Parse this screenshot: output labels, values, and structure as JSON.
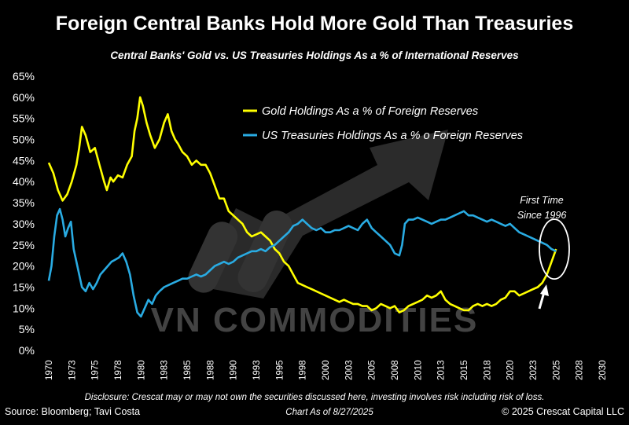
{
  "chart_data": {
    "type": "line",
    "title": "Foreign Central Banks Hold More Gold Than Treasuries",
    "subtitle": "Central Banks' Gold vs. US Treasuries Holdings As a % of International Reserves",
    "xlim": [
      1970,
      2030
    ],
    "ylim": [
      0,
      65
    ],
    "x_ticks": [
      "1970",
      "1973",
      "1975",
      "1978",
      "1980",
      "1983",
      "1985",
      "1988",
      "1990",
      "1993",
      "1995",
      "1998",
      "2000",
      "2003",
      "2005",
      "2008",
      "2010",
      "2013",
      "2015",
      "2018",
      "2020",
      "2023",
      "2025",
      "2028",
      "2030"
    ],
    "y_ticks": [
      "0%",
      "5%",
      "10%",
      "15%",
      "20%",
      "25%",
      "30%",
      "35%",
      "40%",
      "45%",
      "50%",
      "55%",
      "60%",
      "65%"
    ],
    "legend_position": "top-right",
    "series": [
      {
        "name": "Gold Holdings As a % of Foreign Reserves",
        "color": "#ffff00",
        "points": [
          [
            1970.0,
            44.5
          ],
          [
            1970.5,
            42
          ],
          [
            1971.0,
            38
          ],
          [
            1971.5,
            35.5
          ],
          [
            1972.0,
            37
          ],
          [
            1972.5,
            40
          ],
          [
            1973.0,
            44
          ],
          [
            1973.3,
            48
          ],
          [
            1973.6,
            53
          ],
          [
            1974.0,
            51
          ],
          [
            1974.5,
            47
          ],
          [
            1975.0,
            48
          ],
          [
            1975.5,
            44
          ],
          [
            1976.0,
            40
          ],
          [
            1976.3,
            38
          ],
          [
            1976.7,
            41
          ],
          [
            1977.0,
            40
          ],
          [
            1977.5,
            41.5
          ],
          [
            1978.0,
            41
          ],
          [
            1978.5,
            44
          ],
          [
            1979.0,
            46
          ],
          [
            1979.3,
            52
          ],
          [
            1979.6,
            55
          ],
          [
            1979.9,
            60
          ],
          [
            1980.2,
            58
          ],
          [
            1980.6,
            54
          ],
          [
            1981.0,
            51
          ],
          [
            1981.5,
            48
          ],
          [
            1982.0,
            50
          ],
          [
            1982.5,
            54
          ],
          [
            1982.9,
            56
          ],
          [
            1983.3,
            52
          ],
          [
            1983.7,
            50
          ],
          [
            1984.0,
            49
          ],
          [
            1984.5,
            47
          ],
          [
            1985.0,
            46
          ],
          [
            1985.5,
            44
          ],
          [
            1986.0,
            45
          ],
          [
            1986.5,
            44
          ],
          [
            1987.0,
            44
          ],
          [
            1987.5,
            42
          ],
          [
            1988.0,
            39
          ],
          [
            1988.5,
            36
          ],
          [
            1989.0,
            36
          ],
          [
            1989.5,
            33
          ],
          [
            1990.0,
            32
          ],
          [
            1990.5,
            31
          ],
          [
            1991.0,
            30
          ],
          [
            1991.5,
            28
          ],
          [
            1992.0,
            27
          ],
          [
            1992.5,
            27.5
          ],
          [
            1993.0,
            28
          ],
          [
            1993.5,
            27
          ],
          [
            1994.0,
            26
          ],
          [
            1994.5,
            24
          ],
          [
            1995.0,
            23
          ],
          [
            1995.5,
            21
          ],
          [
            1996.0,
            20
          ],
          [
            1996.5,
            18
          ],
          [
            1997.0,
            16
          ],
          [
            1997.5,
            15.5
          ],
          [
            1998.0,
            15
          ],
          [
            1998.5,
            14.5
          ],
          [
            1999.0,
            14
          ],
          [
            1999.5,
            13.5
          ],
          [
            2000.0,
            13
          ],
          [
            2000.5,
            12.5
          ],
          [
            2001.0,
            12
          ],
          [
            2001.5,
            11.5
          ],
          [
            2002.0,
            12
          ],
          [
            2002.5,
            11.5
          ],
          [
            2003.0,
            11
          ],
          [
            2003.5,
            11
          ],
          [
            2004.0,
            10.5
          ],
          [
            2004.5,
            10.5
          ],
          [
            2005.0,
            9.5
          ],
          [
            2005.5,
            10
          ],
          [
            2006.0,
            11
          ],
          [
            2006.5,
            10.5
          ],
          [
            2007.0,
            10
          ],
          [
            2007.5,
            10.5
          ],
          [
            2008.0,
            9
          ],
          [
            2008.5,
            9.5
          ],
          [
            2009.0,
            10.5
          ],
          [
            2009.5,
            11
          ],
          [
            2010.0,
            11.5
          ],
          [
            2010.5,
            12
          ],
          [
            2011.0,
            13
          ],
          [
            2011.5,
            12.5
          ],
          [
            2012.0,
            13
          ],
          [
            2012.5,
            14
          ],
          [
            2013.0,
            12
          ],
          [
            2013.5,
            11
          ],
          [
            2014.0,
            10.5
          ],
          [
            2014.5,
            10
          ],
          [
            2015.0,
            9.5
          ],
          [
            2015.5,
            9.5
          ],
          [
            2016.0,
            10.5
          ],
          [
            2016.5,
            11
          ],
          [
            2017.0,
            10.5
          ],
          [
            2017.5,
            11
          ],
          [
            2018.0,
            10.5
          ],
          [
            2018.5,
            11
          ],
          [
            2019.0,
            12
          ],
          [
            2019.5,
            12.5
          ],
          [
            2020.0,
            14
          ],
          [
            2020.5,
            14
          ],
          [
            2021.0,
            13
          ],
          [
            2021.5,
            13.5
          ],
          [
            2022.0,
            14
          ],
          [
            2022.5,
            14.5
          ],
          [
            2023.0,
            15
          ],
          [
            2023.5,
            16
          ],
          [
            2024.0,
            18
          ],
          [
            2024.5,
            21
          ],
          [
            2025.0,
            24
          ]
        ]
      },
      {
        "name": "US Treasuries Holdings As a % o Foreign Reserves",
        "color": "#29abe2",
        "points": [
          [
            1970.0,
            16.5
          ],
          [
            1970.3,
            20
          ],
          [
            1970.6,
            27
          ],
          [
            1970.9,
            32
          ],
          [
            1971.2,
            33.5
          ],
          [
            1971.5,
            31
          ],
          [
            1971.8,
            27
          ],
          [
            1972.1,
            29
          ],
          [
            1972.4,
            30.5
          ],
          [
            1972.7,
            24
          ],
          [
            1973.0,
            21
          ],
          [
            1973.3,
            18
          ],
          [
            1973.6,
            15
          ],
          [
            1974.0,
            14
          ],
          [
            1974.4,
            16
          ],
          [
            1974.8,
            14.5
          ],
          [
            1975.2,
            16
          ],
          [
            1975.6,
            18
          ],
          [
            1976.0,
            19
          ],
          [
            1976.4,
            20
          ],
          [
            1976.8,
            21
          ],
          [
            1977.2,
            21.5
          ],
          [
            1977.6,
            22
          ],
          [
            1978.0,
            23
          ],
          [
            1978.4,
            21
          ],
          [
            1978.8,
            18
          ],
          [
            1979.2,
            13
          ],
          [
            1979.6,
            9
          ],
          [
            1980.0,
            8
          ],
          [
            1980.4,
            10
          ],
          [
            1980.8,
            12
          ],
          [
            1981.2,
            11
          ],
          [
            1981.6,
            13
          ],
          [
            1982.0,
            14
          ],
          [
            1982.5,
            15
          ],
          [
            1983.0,
            15.5
          ],
          [
            1983.5,
            16
          ],
          [
            1984.0,
            16.5
          ],
          [
            1984.5,
            17
          ],
          [
            1985.0,
            17
          ],
          [
            1985.5,
            17.5
          ],
          [
            1986.0,
            18
          ],
          [
            1986.5,
            17.5
          ],
          [
            1987.0,
            18
          ],
          [
            1987.5,
            19
          ],
          [
            1988.0,
            20
          ],
          [
            1988.5,
            20.5
          ],
          [
            1989.0,
            21
          ],
          [
            1989.5,
            20.5
          ],
          [
            1990.0,
            21
          ],
          [
            1990.5,
            22
          ],
          [
            1991.0,
            22.5
          ],
          [
            1991.5,
            23
          ],
          [
            1992.0,
            23.5
          ],
          [
            1992.5,
            23.5
          ],
          [
            1993.0,
            24
          ],
          [
            1993.5,
            23.5
          ],
          [
            1994.0,
            24.5
          ],
          [
            1994.5,
            25
          ],
          [
            1995.0,
            26
          ],
          [
            1995.5,
            27
          ],
          [
            1996.0,
            28
          ],
          [
            1996.5,
            29.5
          ],
          [
            1997.0,
            30
          ],
          [
            1997.5,
            31
          ],
          [
            1998.0,
            30
          ],
          [
            1998.5,
            29
          ],
          [
            1999.0,
            28.5
          ],
          [
            1999.5,
            29
          ],
          [
            2000.0,
            28
          ],
          [
            2000.5,
            28
          ],
          [
            2001.0,
            28.5
          ],
          [
            2001.5,
            28.5
          ],
          [
            2002.0,
            29
          ],
          [
            2002.5,
            29.5
          ],
          [
            2003.0,
            29
          ],
          [
            2003.5,
            28.5
          ],
          [
            2004.0,
            30
          ],
          [
            2004.5,
            31
          ],
          [
            2005.0,
            29
          ],
          [
            2005.5,
            28
          ],
          [
            2006.0,
            27
          ],
          [
            2006.5,
            26
          ],
          [
            2007.0,
            25
          ],
          [
            2007.5,
            23
          ],
          [
            2008.0,
            22.5
          ],
          [
            2008.3,
            25
          ],
          [
            2008.6,
            30
          ],
          [
            2009.0,
            31
          ],
          [
            2009.5,
            31
          ],
          [
            2010.0,
            31.5
          ],
          [
            2010.5,
            31
          ],
          [
            2011.0,
            30.5
          ],
          [
            2011.5,
            30
          ],
          [
            2012.0,
            30.5
          ],
          [
            2012.5,
            31
          ],
          [
            2013.0,
            31
          ],
          [
            2013.5,
            31.5
          ],
          [
            2014.0,
            32
          ],
          [
            2014.5,
            32.5
          ],
          [
            2015.0,
            33
          ],
          [
            2015.5,
            32
          ],
          [
            2016.0,
            32
          ],
          [
            2016.5,
            31.5
          ],
          [
            2017.0,
            31
          ],
          [
            2017.5,
            30.5
          ],
          [
            2018.0,
            31
          ],
          [
            2018.5,
            30.5
          ],
          [
            2019.0,
            30
          ],
          [
            2019.5,
            29.5
          ],
          [
            2020.0,
            30
          ],
          [
            2020.5,
            29
          ],
          [
            2021.0,
            28
          ],
          [
            2021.5,
            27.5
          ],
          [
            2022.0,
            27
          ],
          [
            2022.5,
            26.5
          ],
          [
            2023.0,
            26
          ],
          [
            2023.5,
            25.5
          ],
          [
            2024.0,
            25
          ],
          [
            2024.5,
            24
          ],
          [
            2025.0,
            23.5
          ]
        ]
      }
    ],
    "annotation": {
      "text_line1": "First Time",
      "text_line2": "Since 1996",
      "x": 2024.8,
      "y": 24
    }
  },
  "watermark": "VN COMMODITIES",
  "footer": {
    "disclosure": "Disclosure: Crescat may or may not own the securities discussed here, investing involves risk including risk of loss.",
    "source": "Source: Bloomberg; Tavi Costa",
    "chart_date": "Chart As of 8/27/2025",
    "copyright": "© 2025 Crescat Capital LLC"
  },
  "colors": {
    "background": "#000000",
    "gold": "#ffff00",
    "treasuries": "#29abe2"
  }
}
